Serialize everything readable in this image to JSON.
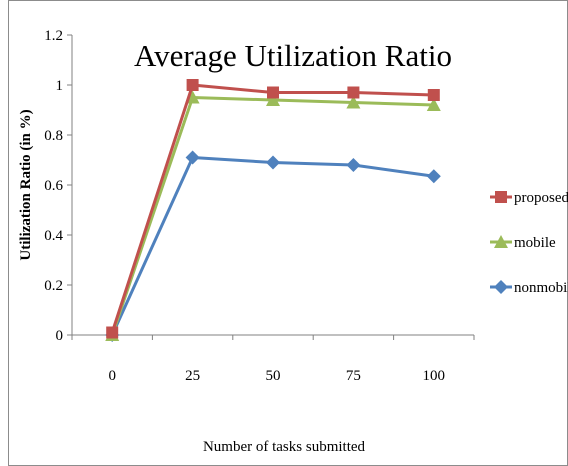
{
  "chart_data": {
    "type": "line",
    "title": "Average Utilization Ratio",
    "xlabel": "Number of tasks submitted",
    "ylabel": "Utilization Ratio (in %)",
    "x": [
      0,
      25,
      50,
      75,
      100
    ],
    "x_tick_labels": [
      "0",
      "25",
      "50",
      "75",
      "100"
    ],
    "y_tick_labels": [
      "0",
      "0.2",
      "0.4",
      "0.6",
      "0.8",
      "1",
      "1.2"
    ],
    "ylim": [
      0,
      1.2
    ],
    "y_ticks": [
      0,
      0.2,
      0.4,
      0.6,
      0.8,
      1,
      1.2
    ],
    "grid": false,
    "legend_position": "right",
    "series": [
      {
        "name": "proposed",
        "values": [
          0.01,
          1.0,
          0.97,
          0.97,
          0.96
        ],
        "color": "#c0504d",
        "marker": "square"
      },
      {
        "name": "mobile",
        "values": [
          0.0,
          0.95,
          0.94,
          0.93,
          0.92
        ],
        "color": "#9bbb59",
        "marker": "triangle"
      },
      {
        "name": "nonmobile",
        "values": [
          0.0,
          0.71,
          0.69,
          0.68,
          0.635
        ],
        "color": "#4f81bd",
        "marker": "diamond"
      }
    ]
  }
}
